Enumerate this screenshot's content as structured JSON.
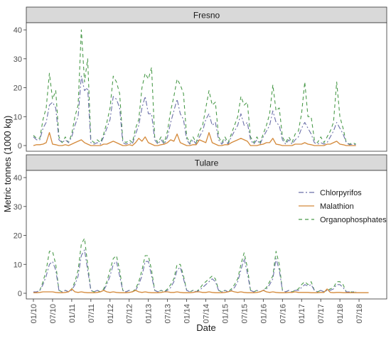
{
  "colors": {
    "chlorpyrifos": "#6b6fa8",
    "malathion": "#d4893a",
    "organophosphates": "#4a9a4a",
    "strip_fill": "#d9d9d9",
    "panel_border": "#333333"
  },
  "chart_data": {
    "type": "line",
    "ylabel": "Metric tonnes (1000 kg)",
    "xlabel": "Date",
    "ylim": [
      0,
      41
    ],
    "yticks": [
      0,
      10,
      20,
      30,
      40
    ],
    "x_tick_labels": [
      "01/10",
      "07/10",
      "01/11",
      "07/11",
      "01/12",
      "07/12",
      "01/13",
      "07/13",
      "01/14",
      "07/14",
      "01/15",
      "07/15",
      "01/16",
      "07/16",
      "01/17",
      "07/17",
      "01/18",
      "07/18"
    ],
    "x_domain_months": [
      0,
      108
    ],
    "grid": false,
    "legend": {
      "placement": "right",
      "entries": [
        {
          "key": "chlorpyrifos",
          "label": "Chlorpyrifos",
          "dash": "dashdot"
        },
        {
          "key": "malathion",
          "label": "Malathion",
          "dash": "solid"
        },
        {
          "key": "organophosphates",
          "label": "Organophosphates",
          "dash": "dashed"
        }
      ]
    },
    "panels": [
      {
        "title": "Fresno",
        "series": [
          {
            "key": "organophosphates",
            "name": "Organophosphates",
            "values": [
              3.5,
              2.5,
              2.5,
              9,
              13,
              25,
              16,
              19,
              3,
              1,
              3,
              1,
              4,
              10,
              14,
              40,
              22,
              30,
              2,
              1,
              2,
              1,
              4,
              8,
              13,
              24,
              22,
              18,
              2,
              1,
              2,
              1,
              6,
              9,
              20,
              25,
              23,
              27,
              3,
              1,
              3,
              1,
              5,
              12,
              17,
              23,
              21,
              18,
              3,
              1,
              3,
              1,
              5,
              7,
              13,
              19,
              14,
              15,
              3,
              1,
              3,
              1,
              4,
              7,
              10,
              17,
              14,
              15,
              3,
              1,
              3,
              1,
              4,
              7,
              11,
              21,
              12,
              13,
              3,
              1,
              3,
              1,
              4,
              5,
              11,
              22,
              10,
              10,
              2,
              1,
              3,
              1,
              3,
              5,
              8,
              22,
              10,
              6,
              1,
              0.5,
              1,
              0.5
            ]
          },
          {
            "key": "chlorpyrifos",
            "name": "Chlorpyrifos",
            "values": [
              3,
              2,
              2,
              6,
              8,
              14,
              15,
              13,
              2,
              1,
              2,
              1,
              3,
              7,
              10,
              24,
              19,
              20,
              1,
              0.5,
              1,
              0.5,
              3,
              6,
              9,
              17,
              16,
              13,
              1,
              0.5,
              1,
              0.5,
              4,
              7,
              13,
              17,
              11,
              11,
              2,
              0.5,
              2,
              0.5,
              3,
              8,
              12,
              16,
              11,
              9,
              2,
              0.5,
              2,
              0.5,
              3,
              5,
              9,
              11,
              7,
              8,
              2,
              0.5,
              2,
              0.5,
              3,
              5,
              7,
              11,
              7,
              8,
              2,
              0.5,
              2,
              0.5,
              3,
              5,
              7,
              12,
              8,
              7,
              2,
              0.5,
              2,
              0.5,
              2,
              3,
              6,
              8,
              6,
              4,
              1,
              0.5,
              1,
              0.5,
              1,
              3,
              5,
              8,
              6,
              4,
              1,
              0.3,
              0.5,
              0.3
            ]
          },
          {
            "key": "malathion",
            "name": "Malathion",
            "values": [
              0,
              0.3,
              0.3,
              0.5,
              1,
              4.5,
              0.5,
              0.3,
              0,
              0,
              0.3,
              0,
              0.5,
              1,
              1.5,
              2,
              1,
              0.5,
              0,
              0,
              0,
              0,
              0.5,
              0.5,
              1,
              1.5,
              1,
              0.5,
              0,
              0,
              0.3,
              0,
              1,
              2.5,
              1.5,
              3,
              1,
              0.5,
              0,
              0,
              0.3,
              0.5,
              1,
              2,
              1.5,
              4,
              1,
              0.5,
              0,
              0,
              0.3,
              0.3,
              2,
              1.5,
              1,
              4.5,
              1,
              0.5,
              0,
              0,
              0.3,
              0.3,
              1,
              1.5,
              2,
              2.5,
              2,
              1.5,
              0,
              0,
              0,
              0.3,
              0.5,
              1,
              1,
              2.5,
              0.5,
              0.3,
              0,
              0,
              0,
              0,
              0.5,
              0.5,
              0.5,
              1,
              0.5,
              0.3,
              0,
              0,
              0,
              0,
              0.5,
              0.5,
              1,
              1.5,
              0.5,
              0.3,
              0,
              0,
              0,
              0
            ]
          }
        ]
      },
      {
        "title": "Tulare",
        "series": [
          {
            "key": "organophosphates",
            "name": "Organophosphates",
            "values": [
              0.5,
              0.5,
              1,
              4,
              8,
              14.5,
              14.5,
              10,
              1,
              0.5,
              1,
              0.5,
              1.5,
              4,
              8,
              17,
              19,
              10,
              1,
              0.5,
              1,
              0.5,
              1.5,
              4,
              8,
              12,
              13,
              8,
              1,
              0.5,
              1,
              0.5,
              1.5,
              4,
              8,
              13,
              13,
              8,
              1,
              0.5,
              1,
              0.5,
              1.5,
              3,
              5,
              10,
              10,
              6,
              1,
              0.5,
              1,
              0.5,
              1.5,
              3,
              4,
              5,
              6,
              5,
              1,
              0.5,
              1,
              0.5,
              1.5,
              3,
              5,
              10,
              14,
              9,
              1,
              0.5,
              1,
              0.5,
              1,
              2,
              4,
              6,
              14.5,
              10,
              1,
              0.5,
              1,
              0.5,
              1,
              1.5,
              3,
              4,
              3,
              4,
              1,
              0.5,
              1,
              0.5,
              1,
              1.5,
              2,
              4,
              4,
              3,
              0.5,
              0.5,
              0.5,
              0.5
            ]
          },
          {
            "key": "chlorpyrifos",
            "name": "Chlorpyrifos",
            "values": [
              0.5,
              0.5,
              1,
              3,
              6,
              10,
              11,
              8,
              1,
              0.5,
              1,
              0.5,
              1,
              3,
              6,
              13,
              15,
              8,
              1,
              0.5,
              1,
              0.5,
              1,
              3,
              6,
              10,
              11,
              6,
              1,
              0.5,
              1,
              0.5,
              1,
              3,
              6,
              11,
              11,
              6,
              1,
              0.5,
              1,
              0.5,
              1,
              2,
              4,
              8,
              9,
              5,
              1,
              0.5,
              1,
              0.5,
              1,
              2,
              3,
              4,
              5,
              4,
              1,
              0.5,
              1,
              0.5,
              1,
              2,
              4,
              8,
              12,
              7,
              1,
              0.5,
              1,
              0.5,
              1,
              1.5,
              3,
              5,
              12,
              8,
              1,
              0.5,
              1,
              0.5,
              1,
              1,
              2,
              3,
              2.5,
              3,
              1,
              0.5,
              1,
              0.5,
              1,
              1,
              1.5,
              3,
              3,
              2,
              0.5,
              0.5,
              0.5,
              0.5
            ]
          },
          {
            "key": "malathion",
            "name": "Malathion",
            "values": [
              0.2,
              0.2,
              0.3,
              0.5,
              0.5,
              0.5,
              0.5,
              0.3,
              0.2,
              0.2,
              0.3,
              0.5,
              1.5,
              0.5,
              0.3,
              0.5,
              0.3,
              0.2,
              0.2,
              0.2,
              0.3,
              0.5,
              1,
              0.5,
              0.3,
              0.5,
              0.3,
              0.2,
              0.2,
              0.2,
              0.3,
              0.5,
              1,
              0.5,
              0.3,
              0.5,
              0.3,
              0.2,
              0.2,
              0.2,
              0.3,
              0.5,
              0.5,
              0.3,
              0.3,
              0.5,
              0.3,
              0.2,
              0.2,
              0.2,
              0.3,
              0.5,
              0.5,
              0.3,
              0.3,
              0.5,
              0.3,
              0.2,
              0.2,
              0.2,
              0.3,
              0.5,
              0.8,
              0.5,
              0.3,
              0.5,
              0.3,
              0.2,
              0.2,
              0.2,
              0.3,
              0.5,
              1,
              0.5,
              0.3,
              0.5,
              0.3,
              0.2,
              0.2,
              0.2,
              0.3,
              0.3,
              0.5,
              0.3,
              0.3,
              0.3,
              0.3,
              0.2,
              0.2,
              0.2,
              0.3,
              0.3,
              1.5,
              0.3,
              0.2,
              0.3,
              0.3,
              0.2,
              0.2,
              0.2,
              0.2,
              0.2,
              0.2,
              0.2,
              0.2,
              0.2
            ]
          }
        ]
      }
    ]
  }
}
